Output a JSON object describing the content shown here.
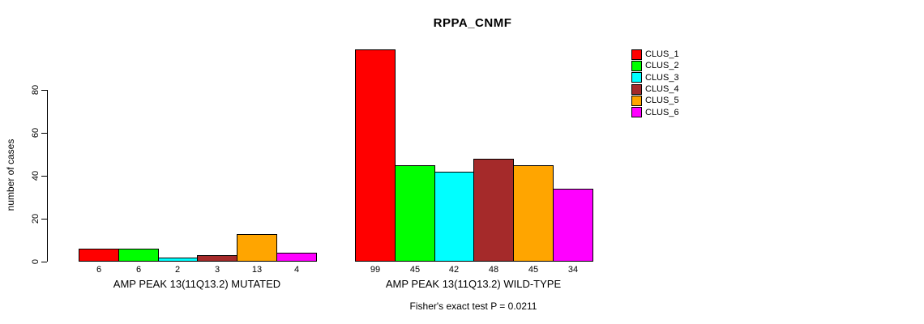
{
  "title": "RPPA_CNMF",
  "y_axis": {
    "label": "number of cases",
    "ticks": [
      0,
      20,
      40,
      60,
      80
    ]
  },
  "footer": "Fisher's exact test P = 0.0211",
  "legend": {
    "position": "right",
    "items": [
      {
        "label": "CLUS_1",
        "color": "#FF0000"
      },
      {
        "label": "CLUS_2",
        "color": "#00FF00"
      },
      {
        "label": "CLUS_3",
        "color": "#00FFFF"
      },
      {
        "label": "CLUS_4",
        "color": "#A52A2A"
      },
      {
        "label": "CLUS_5",
        "color": "#FFA500"
      },
      {
        "label": "CLUS_6",
        "color": "#FF00FF"
      }
    ]
  },
  "chart_data": {
    "type": "bar",
    "title": "RPPA_CNMF",
    "xlabel": "",
    "ylabel": "number of cases",
    "ylim": [
      0,
      99
    ],
    "yticks": [
      0,
      20,
      40,
      60,
      80
    ],
    "grid": false,
    "legend_position": "right",
    "categories": [
      "CLUS_1",
      "CLUS_2",
      "CLUS_3",
      "CLUS_4",
      "CLUS_5",
      "CLUS_6"
    ],
    "series_colors": [
      "#FF0000",
      "#00FF00",
      "#00FFFF",
      "#A52A2A",
      "#FFA500",
      "#FF00FF"
    ],
    "groups": [
      {
        "label": "AMP PEAK 13(11Q13.2) MUTATED",
        "values": [
          6,
          6,
          2,
          3,
          13,
          4
        ]
      },
      {
        "label": "AMP PEAK 13(11Q13.2) WILD-TYPE",
        "values": [
          99,
          45,
          42,
          48,
          45,
          34
        ]
      }
    ],
    "annotation": "Fisher's exact test P = 0.0211"
  }
}
